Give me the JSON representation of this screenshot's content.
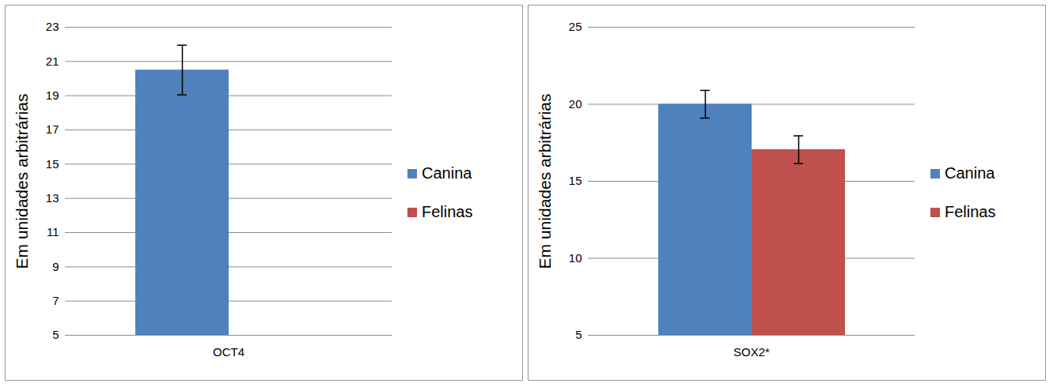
{
  "chart_data": [
    {
      "type": "bar",
      "categories": [
        "OCT4"
      ],
      "ylabel": "Em unidades arbitrárias",
      "series": [
        {
          "name": "Canina",
          "color": "#4f81bd",
          "values": [
            20.5
          ],
          "errors": [
            1.45
          ]
        },
        {
          "name": "Felinas",
          "color": "#c0504d",
          "values": [
            null
          ],
          "errors": [
            null
          ]
        }
      ],
      "ylim": [
        5,
        23
      ],
      "yticks": [
        5,
        7,
        9,
        11,
        13,
        15,
        17,
        19,
        21,
        23
      ],
      "grid": true,
      "legend": "right"
    },
    {
      "type": "bar",
      "categories": [
        "SOX2*"
      ],
      "ylabel": "Em unidades arbitrárias",
      "series": [
        {
          "name": "Canina",
          "color": "#4f81bd",
          "values": [
            20
          ],
          "errors": [
            0.9
          ]
        },
        {
          "name": "Felinas",
          "color": "#c0504d",
          "values": [
            17.05
          ],
          "errors": [
            0.9
          ]
        }
      ],
      "ylim": [
        5,
        25
      ],
      "yticks": [
        5,
        10,
        15,
        20,
        25
      ],
      "grid": true,
      "legend": "right"
    }
  ]
}
